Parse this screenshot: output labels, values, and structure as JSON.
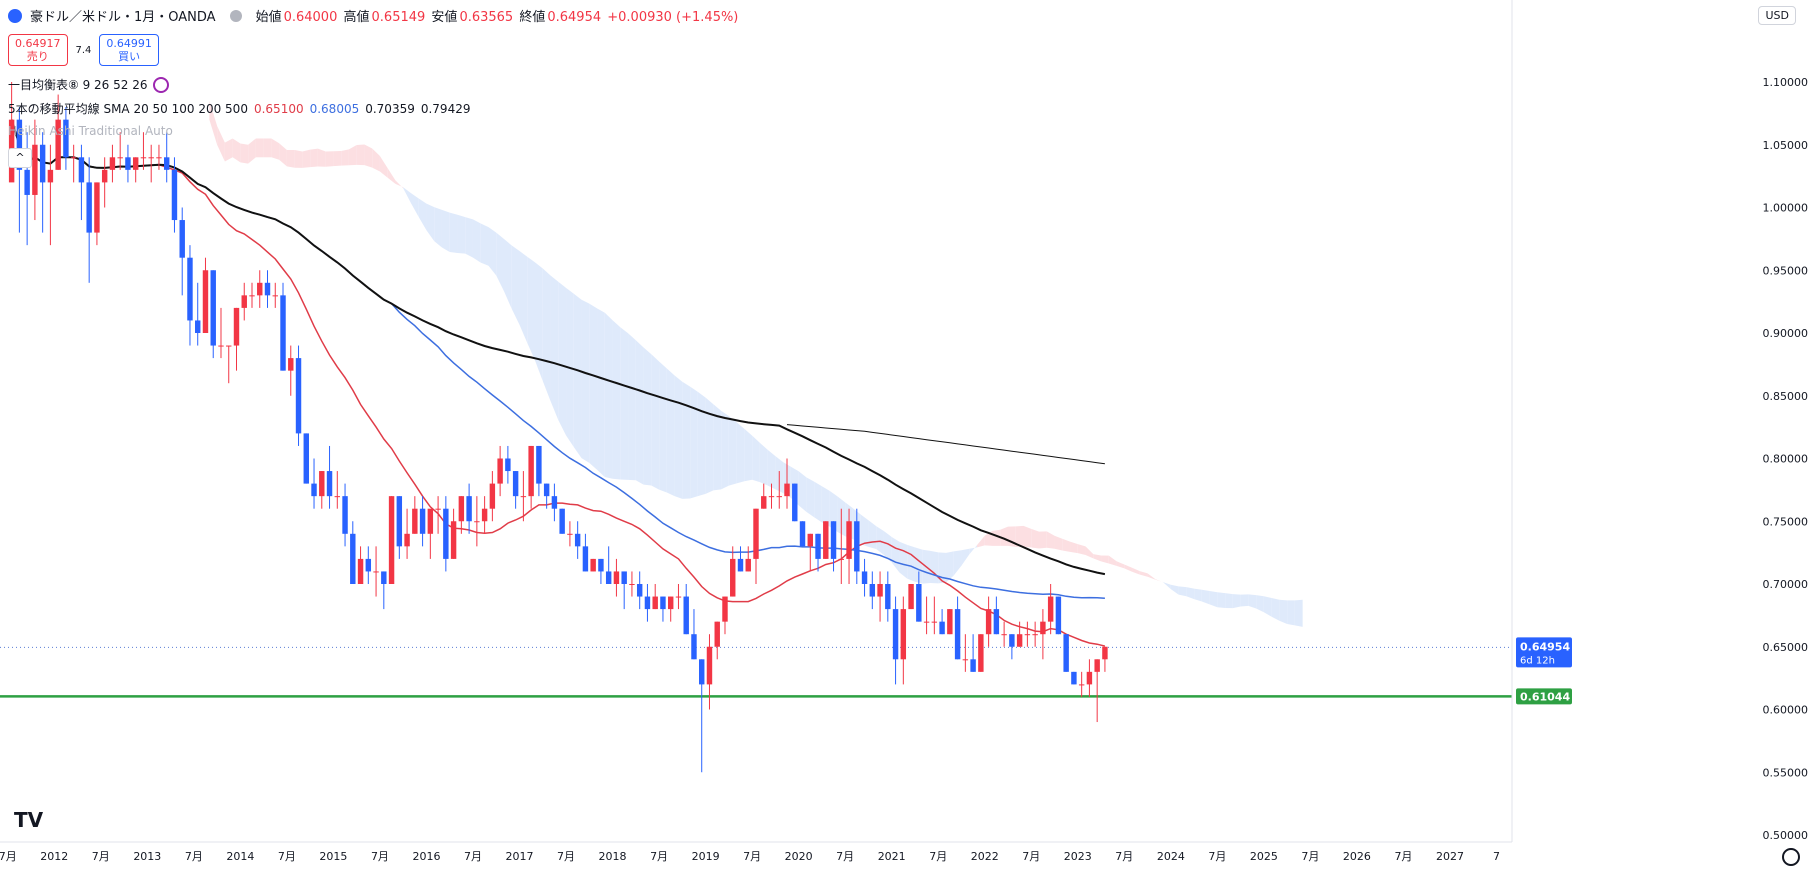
{
  "header": {
    "title": "豪ドル／米ドル・1月・OANDA",
    "open_label": "始値",
    "open": "0.64000",
    "high_label": "高値",
    "high": "0.65149",
    "low_label": "安値",
    "low": "0.63565",
    "close_label": "終値",
    "close": "0.64954",
    "change": "+0.00930 (+1.45%)"
  },
  "trade": {
    "sell_price": "0.64917",
    "sell_label": "売り",
    "spread": "7.4",
    "buy_price": "0.64991",
    "buy_label": "買い"
  },
  "indicators": {
    "ichimoku": "一目均衡表⑧ 9 26 52 26",
    "sma_name": "5本の移動平均線 SMA 20 50 100 200 500",
    "sma20": "0.65100",
    "sma50": "0.68005",
    "sma100": "0.70359",
    "sma200": "0.79429",
    "heikin": "Heikin Ashi Traditional Auto"
  },
  "currency_button": "USD",
  "logo_text": "TV",
  "colors": {
    "up": "#f23645",
    "down": "#2962ff",
    "sma20": "#e03c48",
    "sma50": "#3d6fe0",
    "sma100": "#111111",
    "sma200": "#111111",
    "support": "#2ea043",
    "cloud_bull": "#fcdfe2",
    "cloud_bear": "#dfeafb"
  },
  "chart_data": {
    "type": "candlestick",
    "timeframe": "monthly",
    "y_range": [
      0.5,
      1.15
    ],
    "y_ticks": [
      "1.10000",
      "1.05000",
      "1.00000",
      "0.95000",
      "0.90000",
      "0.85000",
      "0.80000",
      "0.75000",
      "0.70000",
      "0.65000",
      "0.60000",
      "0.55000",
      "0.50000"
    ],
    "x_axis_labels": [
      "7月",
      "2012",
      "7月",
      "2013",
      "7月",
      "2014",
      "7月",
      "2015",
      "7月",
      "2016",
      "7月",
      "2017",
      "7月",
      "2018",
      "7月",
      "2019",
      "7月",
      "2020",
      "7月",
      "2021",
      "7月",
      "2022",
      "7月",
      "2023",
      "7月",
      "2024",
      "7月",
      "2025",
      "7月",
      "2026",
      "7月",
      "2027",
      "7"
    ],
    "x_range": [
      "2011-06",
      "2027-09"
    ],
    "last_price": {
      "value": 0.64954,
      "label": "0.64954",
      "countdown": "6d 12h"
    },
    "support_line": {
      "value": 0.61044,
      "label": "0.61044"
    },
    "series": [
      {
        "name": "AUD/USD",
        "type": "candlestick",
        "start": "2011-07",
        "ohlc_approx": [
          [
            1.02,
            1.1,
            1.03,
            1.07
          ],
          [
            1.07,
            1.08,
            0.98,
            1.03
          ],
          [
            1.03,
            1.06,
            0.97,
            1.01
          ],
          [
            1.01,
            1.07,
            0.99,
            1.05
          ],
          [
            1.05,
            1.06,
            0.98,
            1.02
          ],
          [
            1.02,
            1.05,
            0.97,
            1.03
          ],
          [
            1.03,
            1.09,
            1.03,
            1.07
          ],
          [
            1.07,
            1.08,
            1.03,
            1.04
          ],
          [
            1.04,
            1.05,
            1.02,
            1.04
          ],
          [
            1.04,
            1.05,
            0.99,
            1.02
          ],
          [
            1.02,
            1.04,
            0.94,
            0.98
          ],
          [
            0.98,
            1.02,
            0.97,
            1.02
          ],
          [
            1.02,
            1.04,
            1.0,
            1.03
          ],
          [
            1.03,
            1.05,
            1.02,
            1.04
          ],
          [
            1.04,
            1.06,
            1.03,
            1.04
          ],
          [
            1.04,
            1.05,
            1.02,
            1.03
          ],
          [
            1.03,
            1.04,
            1.02,
            1.04
          ],
          [
            1.04,
            1.06,
            1.03,
            1.04
          ],
          [
            1.04,
            1.05,
            1.02,
            1.04
          ],
          [
            1.04,
            1.05,
            1.03,
            1.04
          ],
          [
            1.04,
            1.06,
            1.02,
            1.03
          ],
          [
            1.03,
            1.04,
            0.98,
            0.99
          ],
          [
            0.99,
            1.0,
            0.93,
            0.96
          ],
          [
            0.96,
            0.97,
            0.89,
            0.91
          ],
          [
            0.91,
            0.94,
            0.89,
            0.9
          ],
          [
            0.9,
            0.96,
            0.9,
            0.95
          ],
          [
            0.95,
            0.95,
            0.88,
            0.89
          ],
          [
            0.89,
            0.92,
            0.88,
            0.89
          ],
          [
            0.89,
            0.89,
            0.86,
            0.89
          ],
          [
            0.89,
            0.92,
            0.87,
            0.92
          ],
          [
            0.92,
            0.94,
            0.91,
            0.93
          ],
          [
            0.93,
            0.94,
            0.92,
            0.93
          ],
          [
            0.93,
            0.95,
            0.92,
            0.94
          ],
          [
            0.94,
            0.95,
            0.92,
            0.93
          ],
          [
            0.93,
            0.94,
            0.92,
            0.93
          ],
          [
            0.93,
            0.94,
            0.87,
            0.87
          ],
          [
            0.87,
            0.89,
            0.85,
            0.88
          ],
          [
            0.88,
            0.89,
            0.81,
            0.82
          ],
          [
            0.82,
            0.82,
            0.78,
            0.78
          ],
          [
            0.78,
            0.8,
            0.76,
            0.77
          ],
          [
            0.77,
            0.79,
            0.76,
            0.79
          ],
          [
            0.79,
            0.81,
            0.76,
            0.77
          ],
          [
            0.77,
            0.79,
            0.76,
            0.77
          ],
          [
            0.77,
            0.78,
            0.73,
            0.74
          ],
          [
            0.74,
            0.75,
            0.7,
            0.7
          ],
          [
            0.7,
            0.73,
            0.7,
            0.72
          ],
          [
            0.72,
            0.73,
            0.7,
            0.71
          ],
          [
            0.71,
            0.73,
            0.69,
            0.71
          ],
          [
            0.71,
            0.71,
            0.68,
            0.7
          ],
          [
            0.7,
            0.77,
            0.71,
            0.77
          ],
          [
            0.77,
            0.77,
            0.72,
            0.73
          ],
          [
            0.73,
            0.76,
            0.72,
            0.74
          ],
          [
            0.74,
            0.77,
            0.74,
            0.76
          ],
          [
            0.76,
            0.77,
            0.73,
            0.74
          ],
          [
            0.74,
            0.75,
            0.72,
            0.76
          ],
          [
            0.76,
            0.77,
            0.74,
            0.76
          ],
          [
            0.76,
            0.77,
            0.71,
            0.72
          ],
          [
            0.72,
            0.76,
            0.72,
            0.75
          ],
          [
            0.75,
            0.77,
            0.74,
            0.77
          ],
          [
            0.77,
            0.78,
            0.74,
            0.75
          ],
          [
            0.75,
            0.77,
            0.73,
            0.75
          ],
          [
            0.75,
            0.77,
            0.74,
            0.76
          ],
          [
            0.76,
            0.79,
            0.75,
            0.78
          ],
          [
            0.78,
            0.81,
            0.77,
            0.8
          ],
          [
            0.8,
            0.81,
            0.78,
            0.79
          ],
          [
            0.79,
            0.79,
            0.76,
            0.77
          ],
          [
            0.77,
            0.79,
            0.75,
            0.77
          ],
          [
            0.77,
            0.81,
            0.76,
            0.81
          ],
          [
            0.81,
            0.81,
            0.77,
            0.78
          ],
          [
            0.78,
            0.78,
            0.76,
            0.77
          ],
          [
            0.77,
            0.78,
            0.75,
            0.76
          ],
          [
            0.76,
            0.76,
            0.74,
            0.74
          ],
          [
            0.74,
            0.75,
            0.73,
            0.74
          ],
          [
            0.74,
            0.75,
            0.72,
            0.73
          ],
          [
            0.73,
            0.74,
            0.71,
            0.71
          ],
          [
            0.71,
            0.72,
            0.71,
            0.72
          ],
          [
            0.72,
            0.72,
            0.7,
            0.71
          ],
          [
            0.71,
            0.73,
            0.7,
            0.7
          ],
          [
            0.7,
            0.72,
            0.69,
            0.71
          ],
          [
            0.71,
            0.71,
            0.68,
            0.7
          ],
          [
            0.7,
            0.71,
            0.69,
            0.7
          ],
          [
            0.7,
            0.71,
            0.68,
            0.69
          ],
          [
            0.69,
            0.7,
            0.67,
            0.68
          ],
          [
            0.68,
            0.7,
            0.68,
            0.69
          ],
          [
            0.69,
            0.69,
            0.67,
            0.68
          ],
          [
            0.68,
            0.69,
            0.67,
            0.69
          ],
          [
            0.69,
            0.7,
            0.68,
            0.69
          ],
          [
            0.69,
            0.7,
            0.66,
            0.66
          ],
          [
            0.66,
            0.68,
            0.64,
            0.64
          ],
          [
            0.64,
            0.64,
            0.55,
            0.62
          ],
          [
            0.62,
            0.66,
            0.6,
            0.65
          ],
          [
            0.65,
            0.67,
            0.64,
            0.67
          ],
          [
            0.67,
            0.69,
            0.66,
            0.69
          ],
          [
            0.69,
            0.73,
            0.69,
            0.72
          ],
          [
            0.72,
            0.73,
            0.71,
            0.71
          ],
          [
            0.71,
            0.73,
            0.71,
            0.72
          ],
          [
            0.72,
            0.76,
            0.7,
            0.76
          ],
          [
            0.76,
            0.78,
            0.76,
            0.77
          ],
          [
            0.77,
            0.78,
            0.76,
            0.77
          ],
          [
            0.77,
            0.79,
            0.76,
            0.77
          ],
          [
            0.77,
            0.8,
            0.76,
            0.78
          ],
          [
            0.78,
            0.78,
            0.75,
            0.75
          ],
          [
            0.75,
            0.75,
            0.73,
            0.73
          ],
          [
            0.73,
            0.74,
            0.71,
            0.74
          ],
          [
            0.74,
            0.74,
            0.71,
            0.72
          ],
          [
            0.72,
            0.75,
            0.72,
            0.75
          ],
          [
            0.75,
            0.75,
            0.71,
            0.72
          ],
          [
            0.72,
            0.76,
            0.7,
            0.72
          ],
          [
            0.72,
            0.76,
            0.7,
            0.75
          ],
          [
            0.75,
            0.76,
            0.7,
            0.71
          ],
          [
            0.71,
            0.72,
            0.69,
            0.7
          ],
          [
            0.7,
            0.71,
            0.68,
            0.69
          ],
          [
            0.69,
            0.71,
            0.67,
            0.7
          ],
          [
            0.7,
            0.71,
            0.67,
            0.68
          ],
          [
            0.68,
            0.69,
            0.62,
            0.64
          ],
          [
            0.64,
            0.69,
            0.62,
            0.68
          ],
          [
            0.68,
            0.7,
            0.68,
            0.7
          ],
          [
            0.7,
            0.71,
            0.67,
            0.67
          ],
          [
            0.67,
            0.69,
            0.66,
            0.67
          ],
          [
            0.67,
            0.69,
            0.66,
            0.67
          ],
          [
            0.67,
            0.68,
            0.66,
            0.66
          ],
          [
            0.66,
            0.68,
            0.66,
            0.68
          ],
          [
            0.68,
            0.69,
            0.64,
            0.64
          ],
          [
            0.64,
            0.66,
            0.63,
            0.64
          ],
          [
            0.64,
            0.66,
            0.63,
            0.63
          ],
          [
            0.63,
            0.66,
            0.63,
            0.66
          ],
          [
            0.66,
            0.69,
            0.65,
            0.68
          ],
          [
            0.68,
            0.69,
            0.66,
            0.66
          ],
          [
            0.66,
            0.67,
            0.65,
            0.66
          ],
          [
            0.66,
            0.66,
            0.64,
            0.65
          ],
          [
            0.65,
            0.67,
            0.65,
            0.66
          ],
          [
            0.66,
            0.67,
            0.65,
            0.66
          ],
          [
            0.66,
            0.67,
            0.65,
            0.66
          ],
          [
            0.66,
            0.68,
            0.64,
            0.67
          ],
          [
            0.67,
            0.7,
            0.66,
            0.69
          ],
          [
            0.69,
            0.69,
            0.66,
            0.66
          ],
          [
            0.66,
            0.66,
            0.63,
            0.63
          ],
          [
            0.63,
            0.63,
            0.62,
            0.62
          ],
          [
            0.62,
            0.63,
            0.61,
            0.62
          ],
          [
            0.62,
            0.64,
            0.61,
            0.63
          ],
          [
            0.63,
            0.64,
            0.59,
            0.64
          ],
          [
            0.64,
            0.65,
            0.63,
            0.65
          ]
        ]
      },
      {
        "name": "SMA 20",
        "type": "line"
      },
      {
        "name": "SMA 50",
        "type": "line"
      },
      {
        "name": "SMA 100",
        "type": "line"
      },
      {
        "name": "SMA 200",
        "type": "line"
      },
      {
        "name": "一目均衡表",
        "type": "cloud"
      }
    ],
    "grid": false
  }
}
